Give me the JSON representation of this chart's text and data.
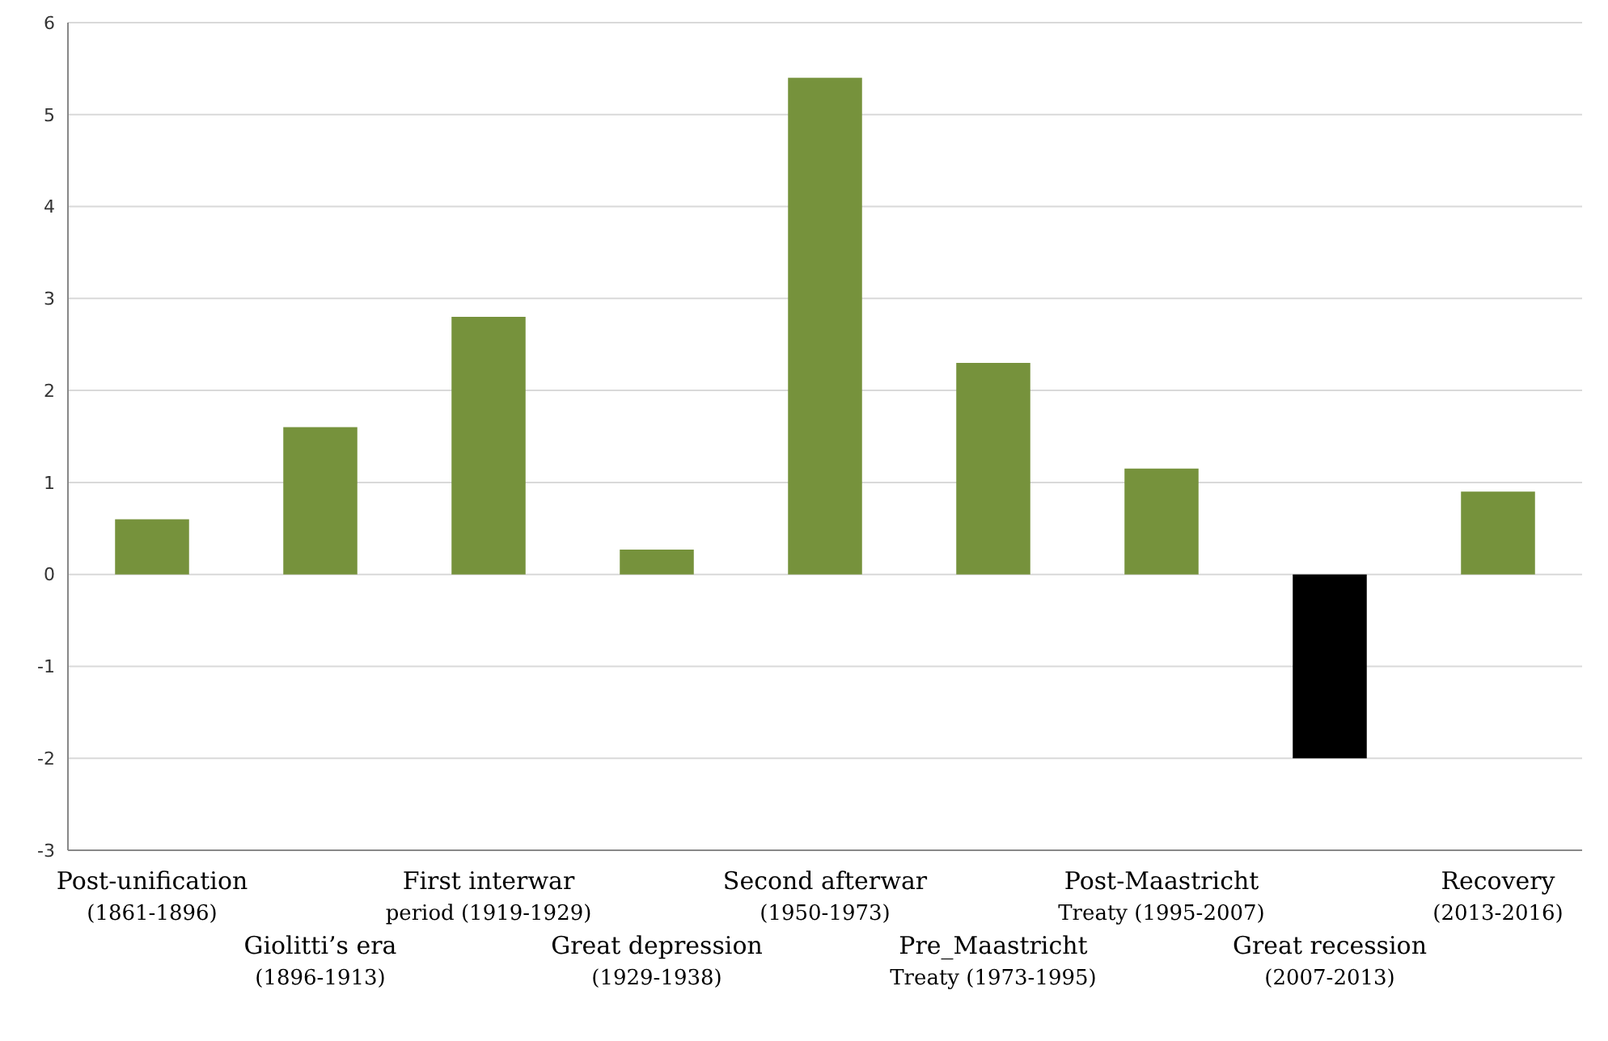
{
  "chart_data": {
    "type": "bar",
    "categories": [
      "Post-unification\n(1861-1896)",
      "Giolitti’s era\n(1896-1913)",
      "First interwar\nperiod (1919-1929)",
      "Great depression\n(1929-1938)",
      "Second afterwar\n(1950-1973)",
      "Pre_Maastricht\nTreaty (1973-1995)",
      "Post-Maastricht\nTreaty (1995-2007)",
      "Great recession\n(2007-2013)",
      "Recovery\n(2013-2016)"
    ],
    "values": [
      0.6,
      1.6,
      2.8,
      0.27,
      5.4,
      2.3,
      1.15,
      -2.0,
      0.9
    ],
    "colors": [
      "#76923c",
      "#76923c",
      "#76923c",
      "#76923c",
      "#76923c",
      "#76923c",
      "#76923c",
      "#000000",
      "#76923c"
    ],
    "ylim": [
      -3,
      6
    ],
    "yticks": [
      -3,
      -2,
      -1,
      0,
      1,
      2,
      3,
      4,
      5,
      6
    ],
    "grid": "y"
  }
}
